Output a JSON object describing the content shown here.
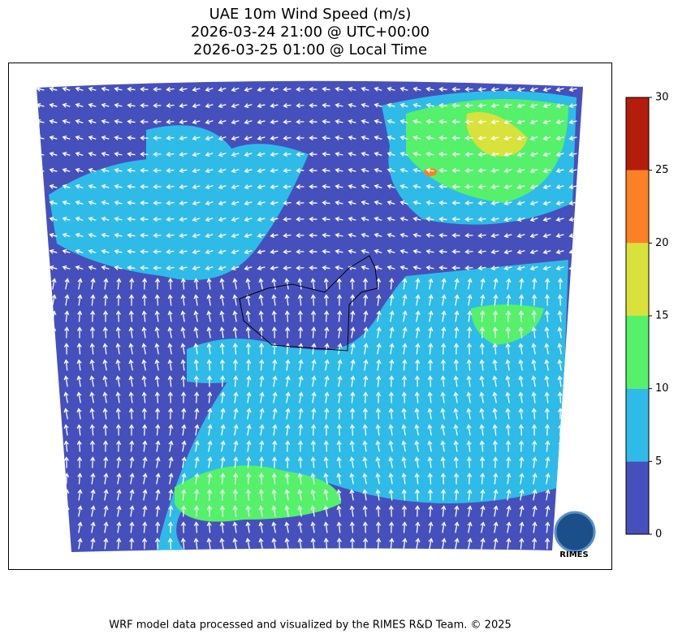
{
  "map": {
    "title": [
      "UAE 10m Wind Speed (m/s)",
      "2026-03-24 21:00 @ UTC+00:00",
      "2026-03-25 01:00 @ Local Time"
    ],
    "colorbar": {
      "lim": [
        0,
        30
      ],
      "ticks": [
        0,
        5,
        10,
        15,
        20,
        25,
        30
      ],
      "colors": [
        "#4650bc",
        "#2fbbe8",
        "#55f16b",
        "#d8e23a",
        "#fb8124",
        "#b41c0b"
      ]
    },
    "logo": "RIMES",
    "footer": "WRF model data processed and visualized by the RIMES R&D Team. © 2025"
  }
}
